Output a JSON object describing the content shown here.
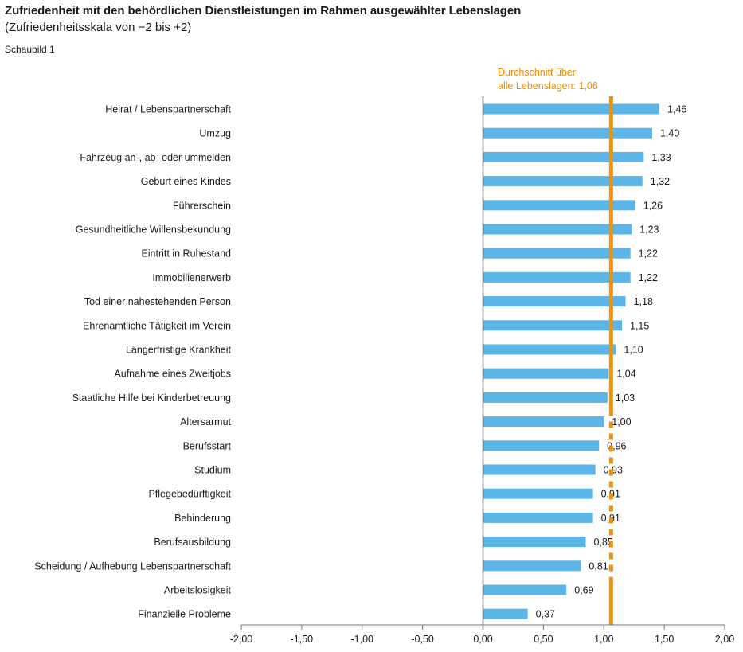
{
  "chart_data": {
    "type": "bar",
    "orientation": "horizontal",
    "title": "Zufriedenheit mit den behördlichen Dienstleistungen im Rahmen ausgewählter Lebenslagen",
    "subtitle": "(Zufriedenheitsskala von −2 bis +2)",
    "figure_label": "Schaubild 1",
    "categories": [
      "Heirat / Lebenspartnerschaft",
      "Umzug",
      "Fahrzeug an-, ab- oder ummelden",
      "Geburt eines Kindes",
      "Führerschein",
      "Gesundheitliche Willensbekundung",
      "Eintritt in Ruhestand",
      "Immobilienerwerb",
      "Tod einer nahestehenden Person",
      "Ehrenamtliche Tätigkeit im Verein",
      "Längerfristige Krankheit",
      "Aufnahme eines Zweitjobs",
      "Staatliche Hilfe bei Kinderbetreuung",
      "Altersarmut",
      "Berufsstart",
      "Studium",
      "Pflegebedürftigkeit",
      "Behinderung",
      "Berufsausbildung",
      "Scheidung / Aufhebung Lebenspartnerschaft",
      "Arbeitslosigkeit",
      "Finanzielle Probleme"
    ],
    "values": [
      1.46,
      1.4,
      1.33,
      1.32,
      1.26,
      1.23,
      1.22,
      1.22,
      1.18,
      1.15,
      1.1,
      1.04,
      1.03,
      1.0,
      0.96,
      0.93,
      0.91,
      0.91,
      0.85,
      0.81,
      0.69,
      0.37
    ],
    "value_labels": [
      "1,46",
      "1,40",
      "1,33",
      "1,32",
      "1,26",
      "1,23",
      "1,22",
      "1,22",
      "1,18",
      "1,15",
      "1,10",
      "1,04",
      "1,03",
      "1,00",
      "0,96",
      "0,93",
      "0,91",
      "0,91",
      "0,85",
      "0,81",
      "0,69",
      "0,37"
    ],
    "xlim": [
      -2,
      2
    ],
    "x_ticks": [
      -2,
      -1.5,
      -1,
      -0.5,
      0,
      0.5,
      1,
      1.5,
      2
    ],
    "x_tick_labels": [
      "-2,00",
      "-1,50",
      "-1,00",
      "-0,50",
      "0,00",
      "0,50",
      "1,00",
      "1,50",
      "2,00"
    ],
    "average": {
      "value": 1.06,
      "label_line1": "Durchschnitt über",
      "label_line2": "alle Lebenslagen: 1,06",
      "color": "#f39200"
    },
    "bar_color": "#5bb5e6",
    "grid": false
  }
}
